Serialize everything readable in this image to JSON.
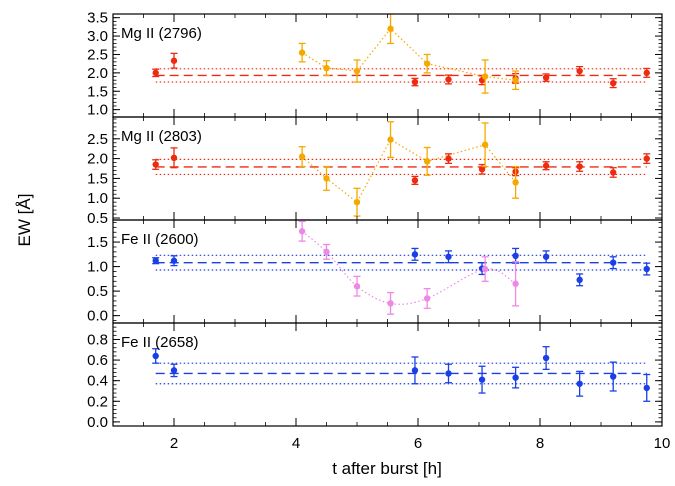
{
  "chart_data": {
    "type": "scatter",
    "xlabel": "t after burst [h]",
    "ylabel": "EW [Å]",
    "xlim": [
      1,
      10
    ],
    "x_ticks": [
      2,
      4,
      6,
      8,
      10
    ],
    "colors": {
      "red": "#ee2a10",
      "orange": "#f5a800",
      "blue": "#1a3fe6",
      "pink": "#ee88e6"
    },
    "panels": [
      {
        "label": "Mg II (2796)",
        "ylim": [
          0.8,
          3.6
        ],
        "y_ticks": [
          1.0,
          1.5,
          2.0,
          2.5,
          3.0,
          3.5
        ],
        "y_tick_labels": [
          "1.0",
          "1.5",
          "2.0",
          "2.5",
          "3.0",
          "3.5"
        ],
        "mean": 1.93,
        "band": [
          1.75,
          2.11
        ],
        "line_color": "red",
        "series": [
          {
            "color": "red",
            "connected": false,
            "points": [
              [
                1.7,
                2.0,
                0.1
              ],
              [
                2.0,
                2.33,
                0.2
              ],
              [
                5.95,
                1.75,
                0.1
              ],
              [
                6.5,
                1.82,
                0.12
              ],
              [
                7.05,
                1.8,
                0.12
              ],
              [
                7.6,
                1.85,
                0.13
              ],
              [
                8.1,
                1.87,
                0.1
              ],
              [
                8.65,
                2.05,
                0.12
              ],
              [
                9.2,
                1.72,
                0.12
              ],
              [
                9.75,
                2.0,
                0.12
              ]
            ]
          },
          {
            "color": "orange",
            "connected": true,
            "points": [
              [
                4.1,
                2.55,
                0.25
              ],
              [
                4.5,
                2.13,
                0.2
              ],
              [
                5.0,
                2.05,
                0.3
              ],
              [
                5.55,
                3.2,
                0.4
              ],
              [
                6.15,
                2.25,
                0.25
              ],
              [
                7.1,
                1.9,
                0.45
              ],
              [
                7.6,
                1.8,
                0.25
              ]
            ]
          }
        ]
      },
      {
        "label": "Mg II (2803)",
        "ylim": [
          0.45,
          3.05
        ],
        "y_ticks": [
          0.5,
          1.0,
          1.5,
          2.0,
          2.5
        ],
        "y_tick_labels": [
          "0.5",
          "1.0",
          "1.5",
          "2.0",
          "2.5"
        ],
        "mean": 1.79,
        "band": [
          1.6,
          1.98
        ],
        "line_color": "red",
        "series": [
          {
            "color": "red",
            "connected": false,
            "points": [
              [
                1.7,
                1.85,
                0.12
              ],
              [
                2.0,
                2.02,
                0.25
              ],
              [
                5.95,
                1.45,
                0.1
              ],
              [
                6.5,
                2.0,
                0.12
              ],
              [
                7.05,
                1.73,
                0.12
              ],
              [
                7.6,
                1.67,
                0.1
              ],
              [
                8.1,
                1.82,
                0.1
              ],
              [
                8.65,
                1.8,
                0.12
              ],
              [
                9.2,
                1.65,
                0.12
              ],
              [
                9.75,
                2.0,
                0.12
              ]
            ]
          },
          {
            "color": "orange",
            "connected": true,
            "points": [
              [
                4.1,
                2.05,
                0.25
              ],
              [
                4.5,
                1.5,
                0.3
              ],
              [
                5.0,
                0.9,
                0.35
              ],
              [
                5.55,
                2.48,
                0.45
              ],
              [
                6.15,
                1.93,
                0.35
              ],
              [
                7.1,
                2.35,
                0.55
              ],
              [
                7.6,
                1.4,
                0.4
              ]
            ]
          }
        ]
      },
      {
        "label": "Fe II (2600)",
        "ylim": [
          -0.15,
          1.95
        ],
        "y_ticks": [
          0.0,
          0.5,
          1.0,
          1.5
        ],
        "y_tick_labels": [
          "0.0",
          "0.5",
          "1.0",
          "1.5"
        ],
        "mean": 1.08,
        "band": [
          0.93,
          1.23
        ],
        "line_color": "blue",
        "series": [
          {
            "color": "blue",
            "connected": false,
            "points": [
              [
                1.7,
                1.12,
                0.06
              ],
              [
                2.0,
                1.12,
                0.1
              ],
              [
                5.95,
                1.25,
                0.12
              ],
              [
                6.5,
                1.2,
                0.12
              ],
              [
                7.05,
                0.96,
                0.12
              ],
              [
                7.6,
                1.22,
                0.15
              ],
              [
                8.1,
                1.2,
                0.12
              ],
              [
                8.65,
                0.73,
                0.12
              ],
              [
                9.2,
                1.08,
                0.12
              ],
              [
                9.75,
                0.95,
                0.12
              ]
            ]
          },
          {
            "color": "pink",
            "connected": true,
            "curve": true,
            "points": [
              [
                4.1,
                1.72,
                0.2
              ],
              [
                4.5,
                1.3,
                0.15
              ],
              [
                5.0,
                0.6,
                0.2
              ],
              [
                5.55,
                0.25,
                0.22
              ],
              [
                6.15,
                0.35,
                0.2
              ],
              [
                7.1,
                0.95,
                0.25
              ],
              [
                7.6,
                0.65,
                0.45
              ]
            ]
          }
        ]
      },
      {
        "label": "Fe II (2658)",
        "ylim": [
          -0.04,
          0.96
        ],
        "y_ticks": [
          0.0,
          0.2,
          0.4,
          0.6,
          0.8
        ],
        "y_tick_labels": [
          "0.0",
          "0.2",
          "0.4",
          "0.6",
          "0.8"
        ],
        "mean": 0.47,
        "band": [
          0.37,
          0.57
        ],
        "line_color": "blue",
        "series": [
          {
            "color": "blue",
            "connected": false,
            "points": [
              [
                1.7,
                0.64,
                0.07
              ],
              [
                2.0,
                0.5,
                0.06
              ],
              [
                5.95,
                0.5,
                0.13
              ],
              [
                6.5,
                0.47,
                0.09
              ],
              [
                7.05,
                0.41,
                0.13
              ],
              [
                7.6,
                0.43,
                0.1
              ],
              [
                8.1,
                0.62,
                0.11
              ],
              [
                8.65,
                0.37,
                0.12
              ],
              [
                9.2,
                0.44,
                0.14
              ],
              [
                9.75,
                0.33,
                0.13
              ]
            ]
          }
        ]
      }
    ]
  }
}
